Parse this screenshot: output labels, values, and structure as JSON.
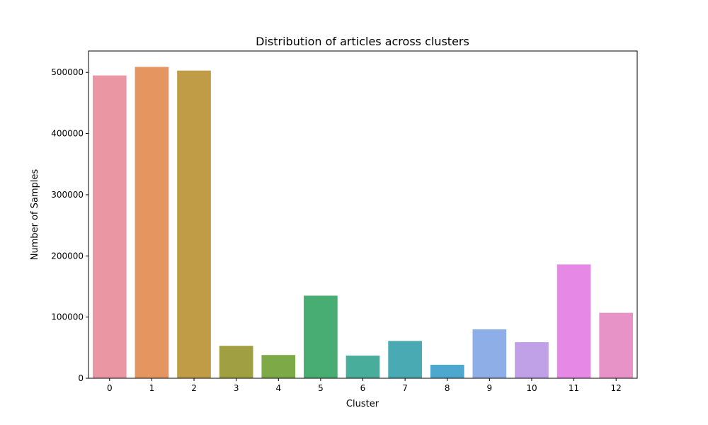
{
  "chart_data": {
    "type": "bar",
    "title": "Distribution of articles across clusters",
    "xlabel": "Cluster",
    "ylabel": "Number of Samples",
    "categories": [
      "0",
      "1",
      "2",
      "3",
      "4",
      "5",
      "6",
      "7",
      "8",
      "9",
      "10",
      "11",
      "12"
    ],
    "values": [
      495000,
      509000,
      503000,
      53000,
      38000,
      135000,
      37000,
      61000,
      22000,
      80000,
      59000,
      186000,
      107000
    ],
    "colors": [
      "#ea96a3",
      "#e59560",
      "#c19c47",
      "#a0a043",
      "#7daa47",
      "#47ad72",
      "#49ad9b",
      "#4aaab3",
      "#4ea7ce",
      "#8eaee8",
      "#c0a1e8",
      "#e688e6",
      "#e893c7"
    ],
    "ylim": [
      0,
      535000
    ],
    "yticks": [
      0,
      100000,
      200000,
      300000,
      400000,
      500000
    ],
    "ytick_labels": [
      "0",
      "100000",
      "200000",
      "300000",
      "400000",
      "500000"
    ],
    "grid": false,
    "legend": false
  }
}
